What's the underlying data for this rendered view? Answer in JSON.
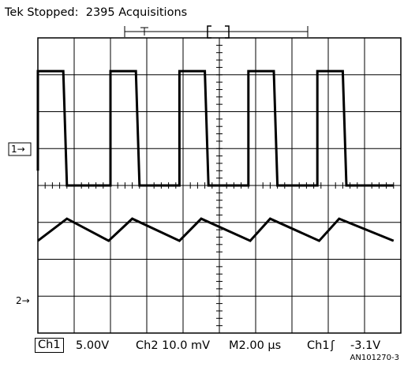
{
  "header": {
    "status_text": "Tek Stopped:  2395 Acquisitions"
  },
  "footer": {
    "ch1_label": "Ch1",
    "ch1_scale": "5.00V",
    "ch2_readout": "Ch2 10.0 mV",
    "timebase": "M2.00 µs",
    "trigger_source": "Ch1",
    "trigger_slope_glyph": "ʃ",
    "trigger_level": "-3.1V",
    "figure_id": "AN101270-3"
  },
  "markers": {
    "ch1": "1→",
    "ch2": "2→"
  },
  "chart_data": {
    "type": "line",
    "title": "",
    "xlabel": "",
    "ylabel": "",
    "grid": true,
    "divisions": {
      "x": 10,
      "y": 8
    },
    "xlim": [
      0,
      20
    ],
    "time_per_div_us": 2.0,
    "series": [
      {
        "channel": "Ch1",
        "volts_per_div": 5.0,
        "ylim_div": [
          -4,
          4
        ],
        "x": [
          0,
          0,
          1.4,
          1.6,
          4.0,
          4.0,
          5.4,
          5.6,
          7.8,
          7.8,
          9.2,
          9.4,
          11.6,
          11.6,
          13.0,
          13.2,
          15.4,
          15.4,
          16.8,
          17.0,
          19.6
        ],
        "y": [
          0.4,
          3.1,
          3.1,
          0.0,
          0.0,
          3.1,
          3.1,
          0.0,
          0.0,
          3.1,
          3.1,
          0.0,
          0.0,
          3.1,
          3.1,
          0.0,
          0.0,
          3.1,
          3.1,
          0.0,
          0.0
        ]
      },
      {
        "channel": "Ch2",
        "volts_per_div": 0.01,
        "ylim_div": [
          -4,
          4
        ],
        "x": [
          0,
          1.6,
          3.9,
          5.2,
          7.8,
          9.0,
          11.7,
          12.8,
          15.5,
          16.6,
          19.6
        ],
        "y": [
          -1.5,
          -0.9,
          -1.5,
          -0.9,
          -1.5,
          -0.9,
          -1.5,
          -0.9,
          -1.5,
          -0.9,
          -1.5
        ]
      }
    ]
  }
}
